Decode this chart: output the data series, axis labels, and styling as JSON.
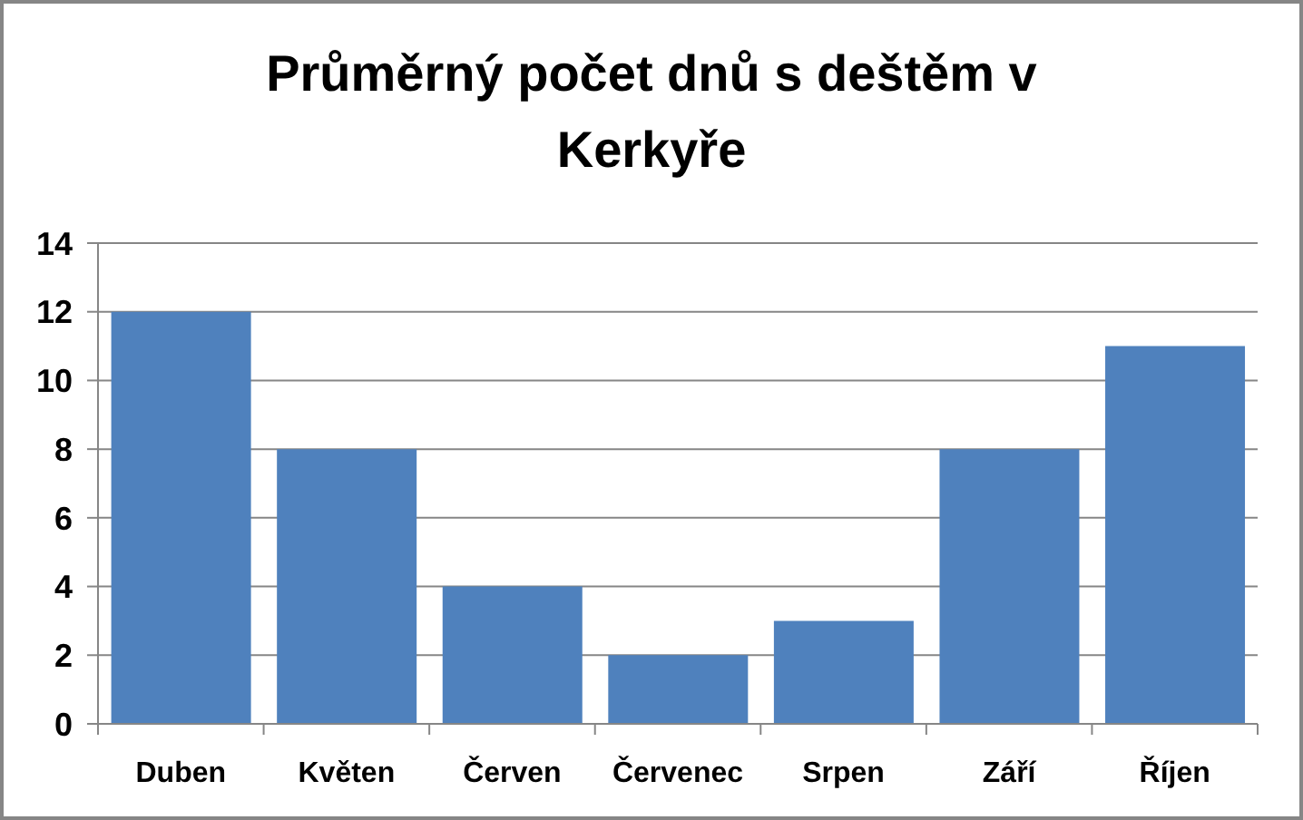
{
  "chart_data": {
    "type": "bar",
    "title": "Průměrný počet dnů s deštěm v Kerkyře",
    "categories": [
      "Duben",
      "Květen",
      "Červen",
      "Červenec",
      "Srpen",
      "Září",
      "Říjen"
    ],
    "values": [
      12,
      8,
      4,
      2,
      3,
      8,
      11
    ],
    "color": "#4f81bd",
    "ylim": [
      0,
      14
    ],
    "yticks": [
      0,
      2,
      4,
      6,
      8,
      10,
      12,
      14
    ],
    "grid": "y"
  }
}
